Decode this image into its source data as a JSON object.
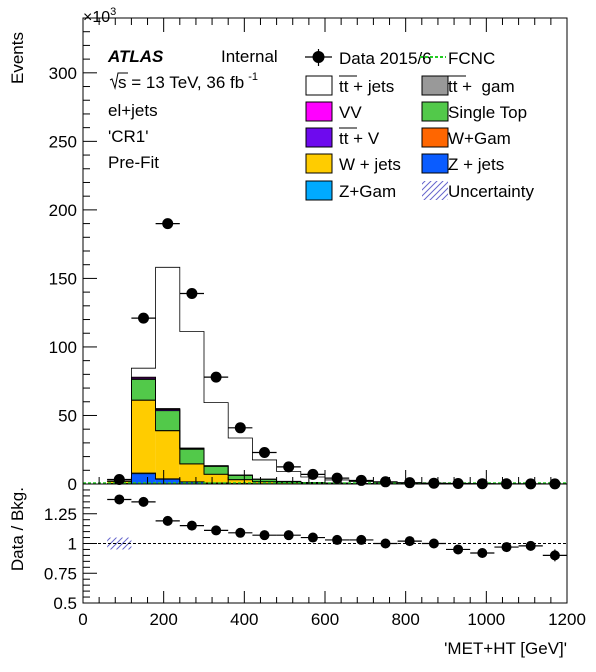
{
  "colors": {
    "ttbar_jets": "#ffffff",
    "ttbar_gam": "#999999",
    "vv": "#ff00ff",
    "single_top": "#52c94a",
    "ttbar_v": "#6e0aee",
    "w_gam": "#ff6600",
    "w_jets": "#ffcc00",
    "z_jets": "#0a5cff",
    "z_gam": "#00aaff",
    "fcnc": "#22cc22",
    "uncertainty": "#6666cc"
  },
  "chart_data": [
    {
      "type": "histogram",
      "panel": "main",
      "exponent_label": "×10",
      "exponent_power": "3",
      "ylabel": "Events",
      "ylim": [
        0,
        340000
      ],
      "xlim": [
        0,
        1200
      ],
      "yticks": [
        0,
        50,
        100,
        150,
        200,
        250,
        300
      ],
      "bins": [
        60,
        120,
        180,
        240,
        300,
        360,
        420,
        480,
        540,
        600,
        660,
        720,
        780,
        840,
        900,
        960,
        1020,
        1080,
        1140,
        1200
      ],
      "atlas": "ATLAS",
      "atlas_status": "Internal",
      "energy_prefix": "s",
      "energy_text": " = 13 TeV, 36 fb",
      "energy_sup": "-1",
      "channel": "el+jets",
      "region": "'CR1'",
      "fit_status": "Pre-Fit",
      "legend": {
        "data": "Data 2015/6",
        "fcnc": "FCNC",
        "ttbar_jets": "tt + jets",
        "ttbar_gam": "tt +  gam",
        "vv": "VV",
        "single_top": "Single Top",
        "ttbar_v": "tt + V",
        "w_gam": "W+Gam",
        "w_jets": "W + jets",
        "z_jets": "Z + jets",
        "z_gam": "Z+Gam",
        "uncertainty": "Uncertainty"
      },
      "stack": [
        {
          "key": "z_jets",
          "values": [
            300,
            7500,
            3500,
            1500,
            700,
            300,
            150,
            80,
            40,
            20,
            10,
            5,
            3,
            2,
            1,
            1,
            0,
            0,
            0
          ]
        },
        {
          "key": "z_gam",
          "values": [
            30,
            500,
            300,
            150,
            70,
            30,
            15,
            8,
            4,
            2,
            1,
            1,
            0,
            0,
            0,
            0,
            0,
            0,
            0
          ]
        },
        {
          "key": "w_jets",
          "values": [
            1600,
            53000,
            35000,
            13000,
            6300,
            2800,
            1500,
            800,
            450,
            260,
            150,
            90,
            55,
            35,
            22,
            14,
            9,
            6,
            4
          ]
        },
        {
          "key": "w_gam",
          "values": [
            10,
            300,
            200,
            90,
            40,
            20,
            10,
            5,
            3,
            2,
            1,
            1,
            0,
            0,
            0,
            0,
            0,
            0,
            0
          ]
        },
        {
          "key": "single_top",
          "values": [
            250,
            15000,
            14500,
            10500,
            5700,
            3100,
            1700,
            950,
            550,
            330,
            200,
            120,
            75,
            47,
            30,
            19,
            12,
            8,
            5
          ]
        },
        {
          "key": "ttbar_v",
          "values": [
            20,
            700,
            800,
            550,
            330,
            190,
            110,
            65,
            40,
            25,
            15,
            10,
            6,
            4,
            2,
            1,
            1,
            1,
            0
          ]
        },
        {
          "key": "vv",
          "values": [
            20,
            700,
            500,
            250,
            120,
            60,
            30,
            15,
            8,
            5,
            3,
            2,
            1,
            1,
            0,
            0,
            0,
            0,
            0
          ]
        },
        {
          "key": "ttbar_gam",
          "values": [
            5,
            300,
            300,
            200,
            120,
            60,
            35,
            20,
            12,
            7,
            4,
            3,
            2,
            1,
            1,
            0,
            0,
            0,
            0
          ]
        },
        {
          "key": "ttbar_jets",
          "values": [
            1000,
            6500,
            103000,
            85000,
            46000,
            27000,
            14000,
            7200,
            4000,
            2300,
            1400,
            850,
            520,
            330,
            210,
            140,
            90,
            60,
            40
          ]
        }
      ],
      "data_points": {
        "x": [
          90,
          150,
          210,
          270,
          330,
          390,
          450,
          510,
          570,
          630,
          690,
          750,
          810,
          870,
          930,
          990,
          1050,
          1110,
          1170
        ],
        "y": [
          3300,
          121000,
          190000,
          139000,
          78000,
          41000,
          23000,
          12500,
          7000,
          4300,
          2600,
          1600,
          960,
          590,
          360,
          225,
          145,
          95,
          60
        ]
      }
    },
    {
      "type": "scatter",
      "panel": "ratio",
      "ylabel": "Data / Bkg.",
      "xlabel": "'MET+HT [GeV]'",
      "ylim": [
        0.5,
        1.5
      ],
      "yticks": [
        "0.5",
        "0.75",
        "1",
        "1.25"
      ],
      "xticks": [
        0,
        200,
        400,
        600,
        800,
        1000,
        1200
      ],
      "reference": 1,
      "uncertainty_band": {
        "x": [
          60,
          120
        ],
        "low": 0.95,
        "high": 1.05
      },
      "points": {
        "x": [
          90,
          150,
          210,
          270,
          330,
          390,
          450,
          510,
          570,
          630,
          690,
          750,
          810,
          870,
          930,
          990,
          1050,
          1110,
          1170
        ],
        "y": [
          1.37,
          1.35,
          1.19,
          1.15,
          1.11,
          1.09,
          1.07,
          1.07,
          1.05,
          1.03,
          1.03,
          1.0,
          1.02,
          1.0,
          0.95,
          0.92,
          0.97,
          0.98,
          0.9
        ],
        "err": [
          0.03,
          0.01,
          0.01,
          0.01,
          0.01,
          0.01,
          0.01,
          0.01,
          0.01,
          0.01,
          0.01,
          0.01,
          0.01,
          0.01,
          0.02,
          0.02,
          0.03,
          0.04,
          0.05
        ]
      }
    }
  ]
}
